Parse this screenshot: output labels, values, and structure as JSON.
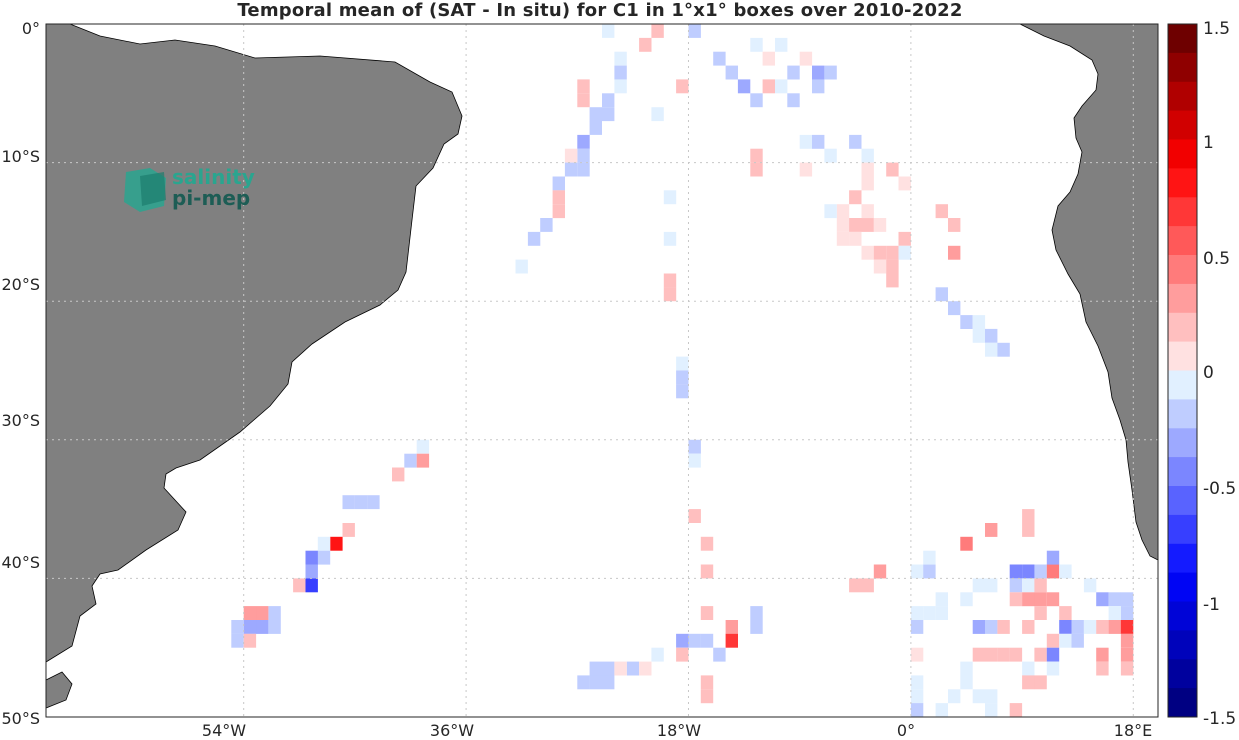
{
  "title": "Temporal mean of (SAT - In situ) for C1 in 1°x1° boxes over 2010-2022",
  "logo": {
    "line1": "salinity",
    "line2": "pi-mep"
  },
  "axes": {
    "lon_ticks": [
      "54°W",
      "36°W",
      "18°W",
      "0°",
      "18°E"
    ],
    "lat_ticks": [
      "0°",
      "10°S",
      "20°S",
      "30°S",
      "40°S",
      "50°S"
    ]
  },
  "colorbar": {
    "ticks": [
      "1.5",
      "1",
      "0.5",
      "0",
      "-0.5",
      "-1",
      "-1.5"
    ],
    "range": [
      -1.5,
      1.5
    ],
    "levels": 24,
    "colormap": "blue-white-red"
  },
  "colors": {
    "land": "#808080",
    "coast": "#000000",
    "grid": "#c8c8c8"
  },
  "map_extent": {
    "lon": [
      -70,
      20
    ],
    "lat": [
      -50,
      0
    ]
  },
  "chart_data": {
    "type": "heatmap",
    "title": "Temporal mean of (SAT - In situ) for C1 in 1°x1° boxes over 2010-2022",
    "units_note": "lon in degrees East, lat in degrees North; v = mean SAT - in situ (pss)",
    "cells": [
      {
        "lon": -24.5,
        "lat": -0.5,
        "v": -0.1
      },
      {
        "lon": -21.5,
        "lat": -1.5,
        "v": 0.2
      },
      {
        "lon": -20.5,
        "lat": -0.5,
        "v": 0.15
      },
      {
        "lon": -17.5,
        "lat": -0.5,
        "v": -0.25
      },
      {
        "lon": -12.5,
        "lat": -1.5,
        "v": -0.1
      },
      {
        "lon": -11.5,
        "lat": -2.5,
        "v": 0.1
      },
      {
        "lon": -10.5,
        "lat": -1.5,
        "v": -0.05
      },
      {
        "lon": -8.5,
        "lat": -2.5,
        "v": 0.1
      },
      {
        "lon": -23.5,
        "lat": -2.5,
        "v": -0.1
      },
      {
        "lon": -23.5,
        "lat": -3.5,
        "v": -0.15
      },
      {
        "lon": -23.5,
        "lat": -4.5,
        "v": -0.1
      },
      {
        "lon": -18.5,
        "lat": -4.5,
        "v": 0.15
      },
      {
        "lon": -15.5,
        "lat": -2.5,
        "v": -0.2
      },
      {
        "lon": -14.5,
        "lat": -3.5,
        "v": -0.25
      },
      {
        "lon": -13.5,
        "lat": -4.5,
        "v": -0.3
      },
      {
        "lon": -12.5,
        "lat": -5.5,
        "v": -0.15
      },
      {
        "lon": -11.5,
        "lat": -4.5,
        "v": 0.15
      },
      {
        "lon": -7.5,
        "lat": -3.5,
        "v": -0.3
      },
      {
        "lon": -6.5,
        "lat": -3.5,
        "v": -0.2
      },
      {
        "lon": -7.5,
        "lat": -4.5,
        "v": -0.15
      },
      {
        "lon": -9.5,
        "lat": -3.5,
        "v": -0.15
      },
      {
        "lon": -10.5,
        "lat": -4.5,
        "v": -0.1
      },
      {
        "lon": -9.5,
        "lat": -5.5,
        "v": -0.15
      },
      {
        "lon": -26.5,
        "lat": -4.5,
        "v": 0.15
      },
      {
        "lon": -26.5,
        "lat": -5.5,
        "v": 0.15
      },
      {
        "lon": -24.5,
        "lat": -5.5,
        "v": -0.2
      },
      {
        "lon": -24.5,
        "lat": -6.5,
        "v": -0.25
      },
      {
        "lon": -25.5,
        "lat": -6.5,
        "v": -0.2
      },
      {
        "lon": -25.5,
        "lat": -7.5,
        "v": -0.25
      },
      {
        "lon": -26.5,
        "lat": -8.5,
        "v": -0.3
      },
      {
        "lon": -26.5,
        "lat": -9.5,
        "v": -0.2
      },
      {
        "lon": -26.5,
        "lat": -10.5,
        "v": -0.15
      },
      {
        "lon": -27.5,
        "lat": -9.5,
        "v": 0.1
      },
      {
        "lon": -27.5,
        "lat": -10.5,
        "v": -0.2
      },
      {
        "lon": -28.5,
        "lat": -11.5,
        "v": -0.15
      },
      {
        "lon": -28.5,
        "lat": -12.5,
        "v": 0.2
      },
      {
        "lon": -28.5,
        "lat": -13.5,
        "v": 0.15
      },
      {
        "lon": -29.5,
        "lat": -14.5,
        "v": -0.2
      },
      {
        "lon": -30.5,
        "lat": -15.5,
        "v": -0.15
      },
      {
        "lon": -31.5,
        "lat": -17.5,
        "v": -0.1
      },
      {
        "lon": -20.5,
        "lat": -6.5,
        "v": -0.1
      },
      {
        "lon": -8.5,
        "lat": -8.5,
        "v": -0.1
      },
      {
        "lon": -7.5,
        "lat": -8.5,
        "v": -0.15
      },
      {
        "lon": -6.5,
        "lat": -9.5,
        "v": -0.1
      },
      {
        "lon": -12.5,
        "lat": -9.5,
        "v": 0.15
      },
      {
        "lon": -12.5,
        "lat": -10.5,
        "v": 0.15
      },
      {
        "lon": -8.5,
        "lat": -10.5,
        "v": 0.1
      },
      {
        "lon": -4.5,
        "lat": -8.5,
        "v": -0.2
      },
      {
        "lon": -3.5,
        "lat": -9.5,
        "v": -0.1
      },
      {
        "lon": -3.5,
        "lat": -10.5,
        "v": 0.1
      },
      {
        "lon": -3.5,
        "lat": -11.5,
        "v": 0.1
      },
      {
        "lon": -1.5,
        "lat": -10.5,
        "v": 0.2
      },
      {
        "lon": -0.5,
        "lat": -11.5,
        "v": 0.1
      },
      {
        "lon": -19.5,
        "lat": -12.5,
        "v": -0.1
      },
      {
        "lon": -4.5,
        "lat": -12.5,
        "v": 0.15
      },
      {
        "lon": -5.5,
        "lat": -13.5,
        "v": 0.1
      },
      {
        "lon": -6.5,
        "lat": -13.5,
        "v": -0.1
      },
      {
        "lon": -5.5,
        "lat": -14.5,
        "v": 0.1
      },
      {
        "lon": -4.5,
        "lat": -14.5,
        "v": 0.15
      },
      {
        "lon": -3.5,
        "lat": -14.5,
        "v": 0.15
      },
      {
        "lon": -2.5,
        "lat": -14.5,
        "v": 0.1
      },
      {
        "lon": -3.5,
        "lat": -13.5,
        "v": 0.1
      },
      {
        "lon": -5.5,
        "lat": -15.5,
        "v": 0.1
      },
      {
        "lon": -4.5,
        "lat": -15.5,
        "v": 0.1
      },
      {
        "lon": -3.5,
        "lat": -16.5,
        "v": 0.1
      },
      {
        "lon": -2.5,
        "lat": -16.5,
        "v": 0.15
      },
      {
        "lon": -1.5,
        "lat": -16.5,
        "v": 0.15
      },
      {
        "lon": -0.5,
        "lat": -15.5,
        "v": 0.15
      },
      {
        "lon": -0.5,
        "lat": -16.5,
        "v": -0.1
      },
      {
        "lon": -2.5,
        "lat": -17.5,
        "v": 0.1
      },
      {
        "lon": -1.5,
        "lat": -17.5,
        "v": 0.15
      },
      {
        "lon": -1.5,
        "lat": -18.5,
        "v": 0.15
      },
      {
        "lon": 2.5,
        "lat": -13.5,
        "v": 0.15
      },
      {
        "lon": 3.5,
        "lat": -14.5,
        "v": 0.2
      },
      {
        "lon": 3.5,
        "lat": -16.5,
        "v": 0.25
      },
      {
        "lon": -19.5,
        "lat": -15.5,
        "v": -0.1
      },
      {
        "lon": -19.5,
        "lat": -18.5,
        "v": 0.15
      },
      {
        "lon": -19.5,
        "lat": -19.5,
        "v": 0.2
      },
      {
        "lon": 2.5,
        "lat": -19.5,
        "v": -0.2
      },
      {
        "lon": 3.5,
        "lat": -20.5,
        "v": -0.15
      },
      {
        "lon": 4.5,
        "lat": -21.5,
        "v": -0.15
      },
      {
        "lon": 5.5,
        "lat": -21.5,
        "v": -0.1
      },
      {
        "lon": 5.5,
        "lat": -22.5,
        "v": -0.1
      },
      {
        "lon": 6.5,
        "lat": -22.5,
        "v": -0.15
      },
      {
        "lon": 6.5,
        "lat": -23.5,
        "v": -0.1
      },
      {
        "lon": 7.5,
        "lat": -23.5,
        "v": -0.15
      },
      {
        "lon": -18.5,
        "lat": -24.5,
        "v": -0.1
      },
      {
        "lon": -18.5,
        "lat": -25.5,
        "v": -0.15
      },
      {
        "lon": -18.5,
        "lat": -26.5,
        "v": -0.2
      },
      {
        "lon": -17.5,
        "lat": -30.5,
        "v": -0.25
      },
      {
        "lon": -17.5,
        "lat": -31.5,
        "v": -0.1
      },
      {
        "lon": -39.5,
        "lat": -30.5,
        "v": -0.1
      },
      {
        "lon": -40.5,
        "lat": -31.5,
        "v": -0.15
      },
      {
        "lon": -39.5,
        "lat": -31.5,
        "v": 0.35
      },
      {
        "lon": -41.5,
        "lat": -32.5,
        "v": 0.15
      },
      {
        "lon": -43.5,
        "lat": -34.5,
        "v": -0.15
      },
      {
        "lon": -44.5,
        "lat": -34.5,
        "v": -0.15
      },
      {
        "lon": -45.5,
        "lat": -34.5,
        "v": -0.15
      },
      {
        "lon": -45.5,
        "lat": -36.5,
        "v": 0.15
      },
      {
        "lon": -46.5,
        "lat": -37.5,
        "v": 0.75
      },
      {
        "lon": -47.5,
        "lat": -37.5,
        "v": -0.1
      },
      {
        "lon": -47.5,
        "lat": -38.5,
        "v": -0.2
      },
      {
        "lon": -48.5,
        "lat": -38.5,
        "v": -0.45
      },
      {
        "lon": -48.5,
        "lat": -39.5,
        "v": -0.3
      },
      {
        "lon": -48.5,
        "lat": -40.5,
        "v": -0.65
      },
      {
        "lon": -49.5,
        "lat": -40.5,
        "v": 0.15
      },
      {
        "lon": -51.5,
        "lat": -42.5,
        "v": -0.25
      },
      {
        "lon": -52.5,
        "lat": -42.5,
        "v": 0.25
      },
      {
        "lon": -53.5,
        "lat": -42.5,
        "v": 0.25
      },
      {
        "lon": -52.5,
        "lat": -43.5,
        "v": -0.35
      },
      {
        "lon": -53.5,
        "lat": -43.5,
        "v": -0.3
      },
      {
        "lon": -54.5,
        "lat": -43.5,
        "v": -0.2
      },
      {
        "lon": -51.5,
        "lat": -43.5,
        "v": -0.15
      },
      {
        "lon": -54.5,
        "lat": -44.5,
        "v": -0.2
      },
      {
        "lon": -53.5,
        "lat": -44.5,
        "v": 0.15
      },
      {
        "lon": -17.5,
        "lat": -35.5,
        "v": 0.15
      },
      {
        "lon": -16.5,
        "lat": -37.5,
        "v": 0.2
      },
      {
        "lon": -16.5,
        "lat": -39.5,
        "v": 0.2
      },
      {
        "lon": -16.5,
        "lat": -42.5,
        "v": 0.15
      },
      {
        "lon": -12.5,
        "lat": -42.5,
        "v": -0.15
      },
      {
        "lon": -12.5,
        "lat": -43.5,
        "v": -0.15
      },
      {
        "lon": -14.5,
        "lat": -43.5,
        "v": 0.25
      },
      {
        "lon": -14.5,
        "lat": -44.5,
        "v": 0.7
      },
      {
        "lon": -18.5,
        "lat": -44.5,
        "v": -0.3
      },
      {
        "lon": -17.5,
        "lat": -44.5,
        "v": -0.2
      },
      {
        "lon": -16.5,
        "lat": -44.5,
        "v": -0.15
      },
      {
        "lon": -18.5,
        "lat": -45.5,
        "v": 0.15
      },
      {
        "lon": -15.5,
        "lat": -45.5,
        "v": -0.15
      },
      {
        "lon": -20.5,
        "lat": -45.5,
        "v": -0.1
      },
      {
        "lon": -16.5,
        "lat": -47.5,
        "v": 0.15
      },
      {
        "lon": -16.5,
        "lat": -48.5,
        "v": 0.15
      },
      {
        "lon": -22.5,
        "lat": -46.5,
        "v": -0.15
      },
      {
        "lon": -23.5,
        "lat": -46.5,
        "v": -0.1
      },
      {
        "lon": -24.5,
        "lat": -46.5,
        "v": -0.25
      },
      {
        "lon": -23.5,
        "lat": -46.5,
        "v": 0.1
      },
      {
        "lon": -25.5,
        "lat": -46.5,
        "v": -0.2
      },
      {
        "lon": -24.5,
        "lat": -47.5,
        "v": -0.2
      },
      {
        "lon": -25.5,
        "lat": -47.5,
        "v": -0.25
      },
      {
        "lon": -26.5,
        "lat": -47.5,
        "v": -0.2
      },
      {
        "lon": -21.5,
        "lat": -46.5,
        "v": 0.1
      },
      {
        "lon": -4.5,
        "lat": -40.5,
        "v": 0.15
      },
      {
        "lon": -3.5,
        "lat": -40.5,
        "v": 0.15
      },
      {
        "lon": -2.5,
        "lat": -39.5,
        "v": 0.35
      },
      {
        "lon": 0.5,
        "lat": -39.5,
        "v": -0.1
      },
      {
        "lon": 1.5,
        "lat": -39.5,
        "v": -0.2
      },
      {
        "lon": 1.5,
        "lat": -38.5,
        "v": -0.1
      },
      {
        "lon": 2.5,
        "lat": -41.5,
        "v": -0.1
      },
      {
        "lon": 1.5,
        "lat": -42.5,
        "v": -0.1
      },
      {
        "lon": 2.5,
        "lat": -42.5,
        "v": -0.1
      },
      {
        "lon": 0.5,
        "lat": -42.5,
        "v": -0.1
      },
      {
        "lon": 0.5,
        "lat": -43.5,
        "v": -0.15
      },
      {
        "lon": 0.5,
        "lat": -45.5,
        "v": 0.1
      },
      {
        "lon": 4.5,
        "lat": -37.5,
        "v": 0.4
      },
      {
        "lon": 6.5,
        "lat": -36.5,
        "v": 0.3
      },
      {
        "lon": 9.5,
        "lat": -35.5,
        "v": 0.15
      },
      {
        "lon": 9.5,
        "lat": -36.5,
        "v": 0.15
      },
      {
        "lon": 5.5,
        "lat": -40.5,
        "v": -0.1
      },
      {
        "lon": 6.5,
        "lat": -40.5,
        "v": -0.1
      },
      {
        "lon": 4.5,
        "lat": -41.5,
        "v": -0.1
      },
      {
        "lon": 8.5,
        "lat": -39.5,
        "v": -0.5
      },
      {
        "lon": 9.5,
        "lat": -39.5,
        "v": -0.4
      },
      {
        "lon": 10.5,
        "lat": -39.5,
        "v": -0.2
      },
      {
        "lon": 11.5,
        "lat": -39.5,
        "v": 0.4
      },
      {
        "lon": 12.5,
        "lat": -39.5,
        "v": -0.1
      },
      {
        "lon": 11.5,
        "lat": -38.5,
        "v": -0.3
      },
      {
        "lon": 8.5,
        "lat": -40.5,
        "v": -0.2
      },
      {
        "lon": 9.5,
        "lat": -40.5,
        "v": -0.1
      },
      {
        "lon": 10.5,
        "lat": -40.5,
        "v": 0.2
      },
      {
        "lon": 8.5,
        "lat": -41.5,
        "v": 0.15
      },
      {
        "lon": 9.5,
        "lat": -41.5,
        "v": 0.25
      },
      {
        "lon": 10.5,
        "lat": -41.5,
        "v": 0.25
      },
      {
        "lon": 11.5,
        "lat": -41.5,
        "v": 0.25
      },
      {
        "lon": 14.5,
        "lat": -40.5,
        "v": -0.1
      },
      {
        "lon": 15.5,
        "lat": -41.5,
        "v": -0.3
      },
      {
        "lon": 16.5,
        "lat": -41.5,
        "v": -0.25
      },
      {
        "lon": 17.5,
        "lat": -41.5,
        "v": -0.15
      },
      {
        "lon": 17.5,
        "lat": -42.5,
        "v": -0.2
      },
      {
        "lon": 16.5,
        "lat": -42.5,
        "v": -0.1
      },
      {
        "lon": 5.5,
        "lat": -43.5,
        "v": -0.35
      },
      {
        "lon": 6.5,
        "lat": -43.5,
        "v": -0.2
      },
      {
        "lon": 7.5,
        "lat": -43.5,
        "v": 0.2
      },
      {
        "lon": 9.5,
        "lat": -43.5,
        "v": 0.15
      },
      {
        "lon": 10.5,
        "lat": -42.5,
        "v": 0.15
      },
      {
        "lon": 12.5,
        "lat": -42.5,
        "v": 0.2
      },
      {
        "lon": 12.5,
        "lat": -43.5,
        "v": -0.5
      },
      {
        "lon": 13.5,
        "lat": -43.5,
        "v": -0.2
      },
      {
        "lon": 14.5,
        "lat": -43.5,
        "v": -0.1
      },
      {
        "lon": 15.5,
        "lat": -43.5,
        "v": 0.2
      },
      {
        "lon": 16.5,
        "lat": -43.5,
        "v": 0.25
      },
      {
        "lon": 17.5,
        "lat": -43.5,
        "v": 0.65
      },
      {
        "lon": 11.5,
        "lat": -44.5,
        "v": 0.15
      },
      {
        "lon": 12.5,
        "lat": -44.5,
        "v": -0.1
      },
      {
        "lon": 13.5,
        "lat": -44.5,
        "v": -0.15
      },
      {
        "lon": 17.5,
        "lat": -44.5,
        "v": 0.3
      },
      {
        "lon": 5.5,
        "lat": -45.5,
        "v": 0.2
      },
      {
        "lon": 6.5,
        "lat": -45.5,
        "v": 0.2
      },
      {
        "lon": 7.5,
        "lat": -45.5,
        "v": 0.2
      },
      {
        "lon": 8.5,
        "lat": -45.5,
        "v": 0.15
      },
      {
        "lon": 10.5,
        "lat": -45.5,
        "v": 0.2
      },
      {
        "lon": 11.5,
        "lat": -45.5,
        "v": -0.5
      },
      {
        "lon": 15.5,
        "lat": -45.5,
        "v": 0.35
      },
      {
        "lon": 17.5,
        "lat": -45.5,
        "v": 0.25
      },
      {
        "lon": 9.5,
        "lat": -46.5,
        "v": -0.1
      },
      {
        "lon": 11.5,
        "lat": -46.5,
        "v": -0.1
      },
      {
        "lon": 15.5,
        "lat": -46.5,
        "v": 0.15
      },
      {
        "lon": 17.5,
        "lat": -46.5,
        "v": 0.15
      },
      {
        "lon": 4.5,
        "lat": -46.5,
        "v": -0.1
      },
      {
        "lon": 4.5,
        "lat": -47.5,
        "v": -0.1
      },
      {
        "lon": 9.5,
        "lat": -47.5,
        "v": 0.15
      },
      {
        "lon": 10.5,
        "lat": -47.5,
        "v": 0.15
      },
      {
        "lon": 0.5,
        "lat": -47.5,
        "v": -0.1
      },
      {
        "lon": 0.5,
        "lat": -48.5,
        "v": -0.1
      },
      {
        "lon": 0.5,
        "lat": -49.5,
        "v": -0.15
      },
      {
        "lon": 2.5,
        "lat": -49.5,
        "v": -0.1
      },
      {
        "lon": 5.5,
        "lat": -48.5,
        "v": -0.1
      },
      {
        "lon": 6.5,
        "lat": -48.5,
        "v": -0.1
      },
      {
        "lon": 6.5,
        "lat": -49.5,
        "v": -0.1
      },
      {
        "lon": 3.5,
        "lat": -48.5,
        "v": -0.1
      },
      {
        "lon": 8.5,
        "lat": -49.5,
        "v": 0.15
      }
    ]
  }
}
